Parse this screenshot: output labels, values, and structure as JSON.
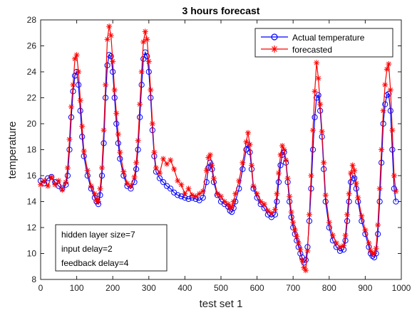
{
  "chart_data": {
    "type": "line",
    "title": "3 hours forecast",
    "xlabel": "test set 1",
    "ylabel": "temperature",
    "xlim": [
      0,
      1000
    ],
    "ylim": [
      8,
      28
    ],
    "x_ticks": [
      0,
      100,
      200,
      300,
      400,
      500,
      600,
      700,
      800,
      900,
      1000
    ],
    "y_ticks": [
      8,
      10,
      12,
      14,
      16,
      18,
      20,
      22,
      24,
      26,
      28
    ],
    "grid": false,
    "legend_position": "top-right",
    "series": [
      {
        "name": "Actual temperature",
        "color": "#0000ff",
        "marker": "circle",
        "points": [
          [
            0,
            15.6
          ],
          [
            10,
            15.4
          ],
          [
            20,
            15.8
          ],
          [
            30,
            15.9
          ],
          [
            40,
            15.5
          ],
          [
            50,
            15.2
          ],
          [
            60,
            15.0
          ],
          [
            70,
            15.3
          ],
          [
            75,
            16.0
          ],
          [
            80,
            18.0
          ],
          [
            85,
            20.5
          ],
          [
            90,
            22.5
          ],
          [
            95,
            23.7
          ],
          [
            100,
            24.0
          ],
          [
            105,
            23.0
          ],
          [
            110,
            21.0
          ],
          [
            115,
            19.0
          ],
          [
            120,
            17.5
          ],
          [
            130,
            16.0
          ],
          [
            140,
            15.0
          ],
          [
            150,
            14.3
          ],
          [
            155,
            14.0
          ],
          [
            160,
            13.8
          ],
          [
            165,
            14.5
          ],
          [
            170,
            16.0
          ],
          [
            175,
            18.5
          ],
          [
            180,
            22.0
          ],
          [
            185,
            24.5
          ],
          [
            190,
            25.3
          ],
          [
            195,
            25.2
          ],
          [
            200,
            24.0
          ],
          [
            205,
            22.0
          ],
          [
            210,
            20.0
          ],
          [
            215,
            18.5
          ],
          [
            220,
            17.3
          ],
          [
            230,
            16.0
          ],
          [
            240,
            15.2
          ],
          [
            250,
            15.0
          ],
          [
            260,
            15.5
          ],
          [
            265,
            16.5
          ],
          [
            270,
            18.0
          ],
          [
            275,
            20.5
          ],
          [
            280,
            23.0
          ],
          [
            285,
            25.0
          ],
          [
            290,
            25.5
          ],
          [
            295,
            25.2
          ],
          [
            300,
            24.0
          ],
          [
            305,
            22.0
          ],
          [
            310,
            19.5
          ],
          [
            315,
            17.5
          ],
          [
            320,
            16.3
          ],
          [
            330,
            15.8
          ],
          [
            340,
            15.5
          ],
          [
            350,
            15.2
          ],
          [
            360,
            15.0
          ],
          [
            370,
            14.7
          ],
          [
            380,
            14.5
          ],
          [
            390,
            14.4
          ],
          [
            400,
            14.3
          ],
          [
            410,
            14.2
          ],
          [
            420,
            14.3
          ],
          [
            430,
            14.2
          ],
          [
            440,
            14.1
          ],
          [
            450,
            14.3
          ],
          [
            460,
            15.5
          ],
          [
            465,
            16.6
          ],
          [
            470,
            17.0
          ],
          [
            475,
            16.5
          ],
          [
            480,
            15.5
          ],
          [
            490,
            14.5
          ],
          [
            500,
            14.0
          ],
          [
            510,
            13.8
          ],
          [
            520,
            13.6
          ],
          [
            525,
            13.3
          ],
          [
            530,
            13.2
          ],
          [
            535,
            13.5
          ],
          [
            540,
            14.0
          ],
          [
            550,
            15.0
          ],
          [
            560,
            16.5
          ],
          [
            570,
            18.0
          ],
          [
            575,
            18.4
          ],
          [
            580,
            17.8
          ],
          [
            585,
            16.5
          ],
          [
            590,
            15.0
          ],
          [
            600,
            14.3
          ],
          [
            610,
            13.8
          ],
          [
            620,
            13.5
          ],
          [
            630,
            13.0
          ],
          [
            640,
            12.8
          ],
          [
            650,
            13.0
          ],
          [
            655,
            14.0
          ],
          [
            660,
            15.5
          ],
          [
            665,
            16.8
          ],
          [
            670,
            17.6
          ],
          [
            675,
            17.8
          ],
          [
            680,
            17.0
          ],
          [
            685,
            15.5
          ],
          [
            690,
            14.0
          ],
          [
            695,
            12.8
          ],
          [
            700,
            12.0
          ],
          [
            705,
            11.5
          ],
          [
            710,
            11.0
          ],
          [
            715,
            10.5
          ],
          [
            720,
            10.0
          ],
          [
            725,
            9.7
          ],
          [
            730,
            9.3
          ],
          [
            735,
            9.5
          ],
          [
            740,
            10.5
          ],
          [
            745,
            12.5
          ],
          [
            750,
            15.0
          ],
          [
            755,
            18.0
          ],
          [
            760,
            20.5
          ],
          [
            765,
            22.0
          ],
          [
            770,
            22.2
          ],
          [
            775,
            21.0
          ],
          [
            780,
            19.0
          ],
          [
            785,
            16.5
          ],
          [
            790,
            14.0
          ],
          [
            800,
            12.0
          ],
          [
            810,
            11.0
          ],
          [
            820,
            10.5
          ],
          [
            830,
            10.2
          ],
          [
            840,
            10.3
          ],
          [
            845,
            11.0
          ],
          [
            850,
            12.5
          ],
          [
            855,
            14.0
          ],
          [
            860,
            15.5
          ],
          [
            865,
            16.0
          ],
          [
            870,
            15.8
          ],
          [
            875,
            15.0
          ],
          [
            880,
            14.0
          ],
          [
            890,
            12.5
          ],
          [
            900,
            11.5
          ],
          [
            910,
            10.5
          ],
          [
            915,
            10.0
          ],
          [
            920,
            9.8
          ],
          [
            925,
            9.7
          ],
          [
            930,
            10.0
          ],
          [
            935,
            11.5
          ],
          [
            940,
            14.0
          ],
          [
            945,
            17.0
          ],
          [
            950,
            20.0
          ],
          [
            955,
            21.5
          ],
          [
            960,
            22.2
          ],
          [
            965,
            22.3
          ],
          [
            970,
            21.0
          ],
          [
            975,
            18.0
          ],
          [
            980,
            15.0
          ],
          [
            985,
            14.0
          ]
        ]
      },
      {
        "name": "forecasted",
        "color": "#ff0000",
        "marker": "star",
        "points": [
          [
            0,
            15.3
          ],
          [
            10,
            15.6
          ],
          [
            20,
            15.2
          ],
          [
            30,
            15.9
          ],
          [
            40,
            15.3
          ],
          [
            50,
            15.6
          ],
          [
            60,
            14.9
          ],
          [
            70,
            15.5
          ],
          [
            75,
            16.6
          ],
          [
            80,
            18.8
          ],
          [
            85,
            21.3
          ],
          [
            90,
            23.0
          ],
          [
            95,
            25.0
          ],
          [
            100,
            25.3
          ],
          [
            105,
            24.0
          ],
          [
            110,
            21.8
          ],
          [
            115,
            19.8
          ],
          [
            120,
            17.9
          ],
          [
            130,
            16.4
          ],
          [
            140,
            15.2
          ],
          [
            150,
            14.6
          ],
          [
            155,
            14.1
          ],
          [
            160,
            14.0
          ],
          [
            165,
            15.0
          ],
          [
            170,
            16.6
          ],
          [
            175,
            19.5
          ],
          [
            180,
            23.0
          ],
          [
            185,
            26.5
          ],
          [
            190,
            27.5
          ],
          [
            195,
            26.8
          ],
          [
            200,
            24.8
          ],
          [
            205,
            22.6
          ],
          [
            210,
            20.8
          ],
          [
            215,
            19.2
          ],
          [
            220,
            17.8
          ],
          [
            230,
            16.3
          ],
          [
            240,
            15.4
          ],
          [
            250,
            15.2
          ],
          [
            260,
            15.9
          ],
          [
            265,
            17.0
          ],
          [
            270,
            18.7
          ],
          [
            275,
            21.5
          ],
          [
            280,
            24.0
          ],
          [
            285,
            26.3
          ],
          [
            290,
            27.1
          ],
          [
            295,
            26.5
          ],
          [
            300,
            24.8
          ],
          [
            305,
            22.6
          ],
          [
            310,
            20.0
          ],
          [
            315,
            17.8
          ],
          [
            320,
            16.6
          ],
          [
            330,
            16.2
          ],
          [
            340,
            17.3
          ],
          [
            350,
            16.9
          ],
          [
            360,
            17.2
          ],
          [
            370,
            16.5
          ],
          [
            380,
            15.6
          ],
          [
            390,
            15.3
          ],
          [
            400,
            14.6
          ],
          [
            410,
            15.0
          ],
          [
            420,
            14.5
          ],
          [
            430,
            14.4
          ],
          [
            440,
            14.6
          ],
          [
            450,
            14.8
          ],
          [
            460,
            16.4
          ],
          [
            465,
            17.4
          ],
          [
            470,
            17.6
          ],
          [
            475,
            16.8
          ],
          [
            480,
            15.8
          ],
          [
            490,
            14.6
          ],
          [
            500,
            14.4
          ],
          [
            510,
            14.0
          ],
          [
            520,
            13.8
          ],
          [
            525,
            13.5
          ],
          [
            530,
            13.6
          ],
          [
            535,
            14.0
          ],
          [
            540,
            14.6
          ],
          [
            550,
            15.6
          ],
          [
            560,
            17.0
          ],
          [
            570,
            18.6
          ],
          [
            575,
            19.3
          ],
          [
            580,
            18.4
          ],
          [
            585,
            16.8
          ],
          [
            590,
            15.2
          ],
          [
            600,
            14.6
          ],
          [
            610,
            14.0
          ],
          [
            620,
            13.8
          ],
          [
            630,
            13.3
          ],
          [
            640,
            13.1
          ],
          [
            650,
            13.4
          ],
          [
            655,
            14.6
          ],
          [
            660,
            16.2
          ],
          [
            665,
            17.6
          ],
          [
            670,
            18.3
          ],
          [
            675,
            18.0
          ],
          [
            680,
            17.2
          ],
          [
            685,
            15.8
          ],
          [
            690,
            14.4
          ],
          [
            695,
            13.2
          ],
          [
            700,
            12.4
          ],
          [
            705,
            11.8
          ],
          [
            710,
            11.3
          ],
          [
            715,
            10.8
          ],
          [
            720,
            10.3
          ],
          [
            725,
            9.5
          ],
          [
            730,
            8.9
          ],
          [
            735,
            8.7
          ],
          [
            740,
            10.2
          ],
          [
            745,
            13.0
          ],
          [
            750,
            16.0
          ],
          [
            755,
            19.5
          ],
          [
            760,
            22.5
          ],
          [
            765,
            24.7
          ],
          [
            770,
            23.5
          ],
          [
            775,
            21.5
          ],
          [
            780,
            19.4
          ],
          [
            785,
            17.0
          ],
          [
            790,
            14.5
          ],
          [
            800,
            12.4
          ],
          [
            810,
            11.4
          ],
          [
            820,
            10.8
          ],
          [
            830,
            10.5
          ],
          [
            840,
            10.6
          ],
          [
            845,
            11.4
          ],
          [
            850,
            13.0
          ],
          [
            855,
            14.6
          ],
          [
            860,
            16.2
          ],
          [
            865,
            16.8
          ],
          [
            870,
            16.4
          ],
          [
            875,
            15.4
          ],
          [
            880,
            14.3
          ],
          [
            890,
            12.9
          ],
          [
            900,
            11.8
          ],
          [
            910,
            10.8
          ],
          [
            915,
            10.2
          ],
          [
            920,
            10.0
          ],
          [
            925,
            10.0
          ],
          [
            930,
            10.4
          ],
          [
            935,
            12.2
          ],
          [
            940,
            15.0
          ],
          [
            945,
            18.0
          ],
          [
            950,
            21.0
          ],
          [
            955,
            23.0
          ],
          [
            960,
            24.2
          ],
          [
            965,
            24.6
          ],
          [
            970,
            22.6
          ],
          [
            975,
            19.5
          ],
          [
            980,
            16.0
          ],
          [
            985,
            14.8
          ]
        ]
      }
    ],
    "annotation": {
      "lines": [
        "hidden layer size=7",
        "input delay=2",
        "feedback delay=4"
      ]
    }
  }
}
